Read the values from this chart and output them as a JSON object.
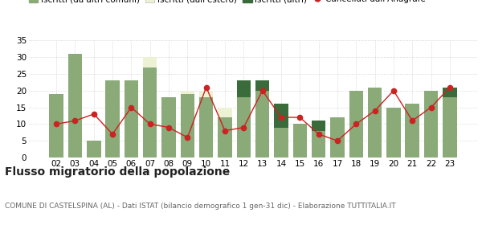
{
  "years": [
    "02",
    "03",
    "04",
    "05",
    "06",
    "07",
    "08",
    "09",
    "10",
    "11",
    "12",
    "13",
    "14",
    "15",
    "16",
    "17",
    "18",
    "19",
    "20",
    "21",
    "22",
    "23"
  ],
  "iscritti_comuni": [
    19,
    31,
    5,
    23,
    23,
    27,
    18,
    19,
    18,
    12,
    18,
    20,
    9,
    10,
    8,
    12,
    20,
    21,
    15,
    16,
    20,
    18
  ],
  "iscritti_estero": [
    0,
    0,
    0,
    0,
    0,
    3,
    0,
    1,
    2,
    3,
    0,
    0,
    0,
    0,
    0,
    0,
    0,
    0,
    0,
    0,
    0,
    0
  ],
  "iscritti_altri": [
    0,
    0,
    0,
    0,
    0,
    0,
    0,
    0,
    0,
    0,
    5,
    3,
    7,
    0,
    3,
    0,
    0,
    0,
    0,
    0,
    0,
    3
  ],
  "cancellati": [
    10,
    11,
    13,
    7,
    15,
    10,
    9,
    6,
    21,
    8,
    9,
    20,
    12,
    12,
    7,
    5,
    10,
    14,
    20,
    11,
    15,
    21
  ],
  "color_comuni": "#8aaa78",
  "color_estero": "#edf2d5",
  "color_altri": "#3a6b3a",
  "color_cancellati": "#cc2222",
  "color_grid": "#cccccc",
  "color_bg": "#ffffff",
  "ylim": [
    0,
    35
  ],
  "yticks": [
    0,
    5,
    10,
    15,
    20,
    25,
    30,
    35
  ],
  "title": "Flusso migratorio della popolazione",
  "subtitle": "COMUNE DI CASTELSPINA (AL) - Dati ISTAT (bilancio demografico 1 gen-31 dic) - Elaborazione TUTTITALIA.IT",
  "title_fontsize": 10,
  "subtitle_fontsize": 6.5,
  "legend_fontsize": 7.5,
  "tick_fontsize": 7.5
}
